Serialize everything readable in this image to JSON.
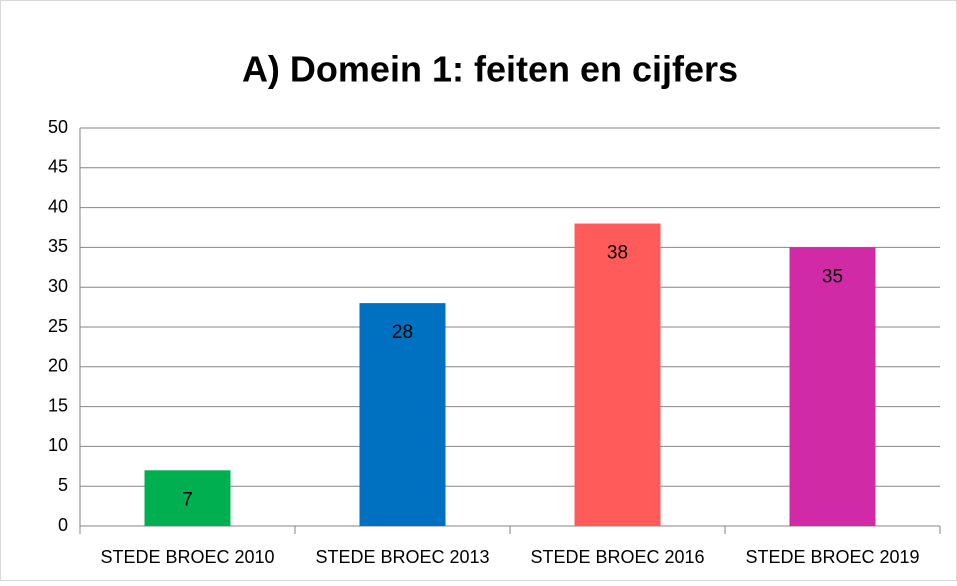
{
  "chart_data": {
    "type": "bar",
    "title": "A) Domein 1: feiten en cijfers",
    "categories": [
      "STEDE BROEC 2010",
      "STEDE BROEC 2013",
      "STEDE BROEC 2016",
      "STEDE BROEC 2019"
    ],
    "values": [
      7,
      28,
      38,
      35
    ],
    "colors": [
      "#00b050",
      "#0070c0",
      "#ff5b5b",
      "#d02aa6"
    ],
    "ylim": [
      0,
      50
    ],
    "yticks": [
      0,
      5,
      10,
      15,
      20,
      25,
      30,
      35,
      40,
      45,
      50
    ],
    "grid": true
  }
}
